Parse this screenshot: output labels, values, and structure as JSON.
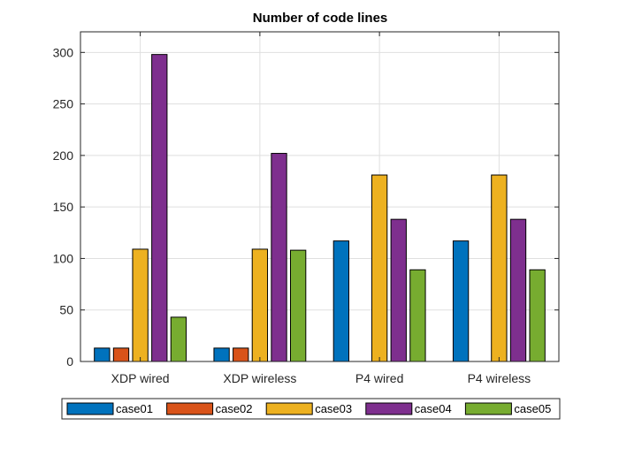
{
  "chart_data": {
    "type": "bar",
    "title": "Number of code lines",
    "xlabel": "",
    "ylabel": "",
    "categories": [
      "XDP wired",
      "XDP wireless",
      "P4 wired",
      "P4 wireless"
    ],
    "series": [
      {
        "name": "case01",
        "color": "#0072BD",
        "values": [
          13,
          13,
          117,
          117
        ]
      },
      {
        "name": "case02",
        "color": "#D95319",
        "values": [
          13,
          13,
          0,
          0
        ]
      },
      {
        "name": "case03",
        "color": "#EDB120",
        "values": [
          109,
          109,
          181,
          181
        ]
      },
      {
        "name": "case04",
        "color": "#7E2F8E",
        "values": [
          298,
          202,
          138,
          138
        ]
      },
      {
        "name": "case05",
        "color": "#77AC30",
        "values": [
          43,
          108,
          89,
          89
        ]
      }
    ],
    "ylim": [
      0,
      320
    ],
    "yticks": [
      0,
      50,
      100,
      150,
      200,
      250,
      300
    ],
    "grid": true,
    "legend_position": "bottom"
  }
}
